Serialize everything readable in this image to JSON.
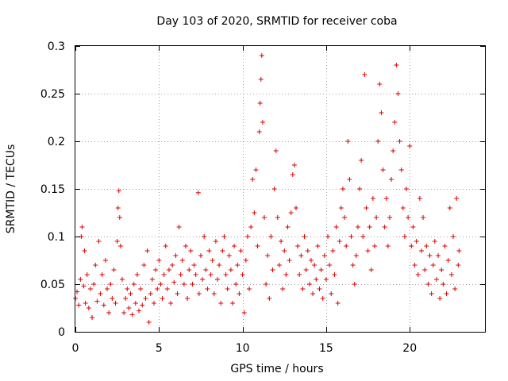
{
  "chart_data": {
    "type": "scatter",
    "title": "Day 103 of 2020, SRMTID for receiver coba",
    "xlabel": "GPS time / hours",
    "ylabel": "SRMTID / TECUs",
    "xlim": [
      0,
      24.5
    ],
    "ylim": [
      0,
      0.3
    ],
    "xticks": [
      0,
      5,
      10,
      15,
      20
    ],
    "xtick_labels": [
      "0",
      "5",
      "10",
      "15",
      "20"
    ],
    "yticks": [
      0,
      0.05,
      0.1,
      0.15,
      0.2,
      0.25,
      0.3
    ],
    "ytick_labels": [
      "0",
      "0.05",
      "0.1",
      "0.15",
      "0.2",
      "0.25",
      "0.3"
    ],
    "grid": true,
    "marker": "+",
    "color": "#e00000",
    "series": [
      {
        "name": "SRMTID",
        "points": [
          [
            0.0,
            0.035
          ],
          [
            0.1,
            0.042
          ],
          [
            0.2,
            0.028
          ],
          [
            0.3,
            0.055
          ],
          [
            0.35,
            0.1
          ],
          [
            0.4,
            0.11
          ],
          [
            0.5,
            0.048
          ],
          [
            0.55,
            0.085
          ],
          [
            0.6,
            0.03
          ],
          [
            0.7,
            0.06
          ],
          [
            0.8,
            0.025
          ],
          [
            0.9,
            0.045
          ],
          [
            1.0,
            0.015
          ],
          [
            1.1,
            0.05
          ],
          [
            1.2,
            0.07
          ],
          [
            1.3,
            0.032
          ],
          [
            1.4,
            0.095
          ],
          [
            1.5,
            0.04
          ],
          [
            1.6,
            0.06
          ],
          [
            1.7,
            0.028
          ],
          [
            1.8,
            0.075
          ],
          [
            1.9,
            0.045
          ],
          [
            2.0,
            0.02
          ],
          [
            2.1,
            0.05
          ],
          [
            2.2,
            0.035
          ],
          [
            2.3,
            0.065
          ],
          [
            2.4,
            0.03
          ],
          [
            2.5,
            0.095
          ],
          [
            2.55,
            0.13
          ],
          [
            2.6,
            0.148
          ],
          [
            2.65,
            0.12
          ],
          [
            2.7,
            0.09
          ],
          [
            2.8,
            0.055
          ],
          [
            2.9,
            0.02
          ],
          [
            3.0,
            0.035
          ],
          [
            3.1,
            0.045
          ],
          [
            3.2,
            0.025
          ],
          [
            3.3,
            0.04
          ],
          [
            3.4,
            0.018
          ],
          [
            3.5,
            0.05
          ],
          [
            3.6,
            0.03
          ],
          [
            3.7,
            0.06
          ],
          [
            3.8,
            0.022
          ],
          [
            3.9,
            0.045
          ],
          [
            4.0,
            0.028
          ],
          [
            4.1,
            0.07
          ],
          [
            4.2,
            0.035
          ],
          [
            4.3,
            0.085
          ],
          [
            4.4,
            0.01
          ],
          [
            4.5,
            0.04
          ],
          [
            4.6,
            0.055
          ],
          [
            4.7,
            0.03
          ],
          [
            4.8,
            0.065
          ],
          [
            4.9,
            0.045
          ],
          [
            5.0,
            0.075
          ],
          [
            5.1,
            0.05
          ],
          [
            5.2,
            0.035
          ],
          [
            5.3,
            0.06
          ],
          [
            5.4,
            0.09
          ],
          [
            5.5,
            0.045
          ],
          [
            5.6,
            0.065
          ],
          [
            5.7,
            0.03
          ],
          [
            5.8,
            0.07
          ],
          [
            5.9,
            0.052
          ],
          [
            6.0,
            0.08
          ],
          [
            6.1,
            0.04
          ],
          [
            6.2,
            0.11
          ],
          [
            6.3,
            0.06
          ],
          [
            6.4,
            0.075
          ],
          [
            6.5,
            0.05
          ],
          [
            6.6,
            0.09
          ],
          [
            6.7,
            0.035
          ],
          [
            6.8,
            0.065
          ],
          [
            6.9,
            0.085
          ],
          [
            7.0,
            0.05
          ],
          [
            7.1,
            0.07
          ],
          [
            7.2,
            0.06
          ],
          [
            7.35,
            0.146
          ],
          [
            7.4,
            0.04
          ],
          [
            7.5,
            0.08
          ],
          [
            7.6,
            0.055
          ],
          [
            7.7,
            0.1
          ],
          [
            7.8,
            0.065
          ],
          [
            7.9,
            0.045
          ],
          [
            8.0,
            0.085
          ],
          [
            8.1,
            0.06
          ],
          [
            8.2,
            0.075
          ],
          [
            8.3,
            0.04
          ],
          [
            8.4,
            0.095
          ],
          [
            8.5,
            0.055
          ],
          [
            8.6,
            0.07
          ],
          [
            8.7,
            0.03
          ],
          [
            8.8,
            0.085
          ],
          [
            8.9,
            0.1
          ],
          [
            9.0,
            0.06
          ],
          [
            9.1,
            0.045
          ],
          [
            9.2,
            0.08
          ],
          [
            9.3,
            0.065
          ],
          [
            9.4,
            0.03
          ],
          [
            9.5,
            0.09
          ],
          [
            9.6,
            0.05
          ],
          [
            9.7,
            0.07
          ],
          [
            9.8,
            0.04
          ],
          [
            9.9,
            0.085
          ],
          [
            10.0,
            0.06
          ],
          [
            10.1,
            0.02
          ],
          [
            10.2,
            0.075
          ],
          [
            10.3,
            0.1
          ],
          [
            10.4,
            0.045
          ],
          [
            10.5,
            0.11
          ],
          [
            10.6,
            0.16
          ],
          [
            10.7,
            0.125
          ],
          [
            10.8,
            0.17
          ],
          [
            10.9,
            0.09
          ],
          [
            11.0,
            0.21
          ],
          [
            11.05,
            0.24
          ],
          [
            11.1,
            0.265
          ],
          [
            11.15,
            0.29
          ],
          [
            11.2,
            0.22
          ],
          [
            11.3,
            0.12
          ],
          [
            11.4,
            0.05
          ],
          [
            11.5,
            0.08
          ],
          [
            11.6,
            0.035
          ],
          [
            11.7,
            0.1
          ],
          [
            11.8,
            0.065
          ],
          [
            11.9,
            0.15
          ],
          [
            12.0,
            0.19
          ],
          [
            12.1,
            0.12
          ],
          [
            12.2,
            0.07
          ],
          [
            12.3,
            0.095
          ],
          [
            12.4,
            0.045
          ],
          [
            12.5,
            0.085
          ],
          [
            12.6,
            0.06
          ],
          [
            12.7,
            0.11
          ],
          [
            12.8,
            0.075
          ],
          [
            12.9,
            0.125
          ],
          [
            13.0,
            0.165
          ],
          [
            13.1,
            0.175
          ],
          [
            13.2,
            0.13
          ],
          [
            13.3,
            0.09
          ],
          [
            13.4,
            0.06
          ],
          [
            13.5,
            0.08
          ],
          [
            13.6,
            0.045
          ],
          [
            13.7,
            0.1
          ],
          [
            13.8,
            0.065
          ],
          [
            13.9,
            0.085
          ],
          [
            14.0,
            0.05
          ],
          [
            14.1,
            0.075
          ],
          [
            14.2,
            0.04
          ],
          [
            14.3,
            0.07
          ],
          [
            14.4,
            0.055
          ],
          [
            14.5,
            0.09
          ],
          [
            14.6,
            0.045
          ],
          [
            14.7,
            0.065
          ],
          [
            14.8,
            0.035
          ],
          [
            14.9,
            0.08
          ],
          [
            15.0,
            0.055
          ],
          [
            15.1,
            0.1
          ],
          [
            15.2,
            0.07
          ],
          [
            15.3,
            0.04
          ],
          [
            15.4,
            0.085
          ],
          [
            15.5,
            0.06
          ],
          [
            15.6,
            0.11
          ],
          [
            15.7,
            0.03
          ],
          [
            15.8,
            0.095
          ],
          [
            15.9,
            0.13
          ],
          [
            16.0,
            0.15
          ],
          [
            16.1,
            0.12
          ],
          [
            16.2,
            0.09
          ],
          [
            16.3,
            0.2
          ],
          [
            16.4,
            0.16
          ],
          [
            16.5,
            0.1
          ],
          [
            16.6,
            0.07
          ],
          [
            16.7,
            0.05
          ],
          [
            16.8,
            0.08
          ],
          [
            16.9,
            0.11
          ],
          [
            17.0,
            0.15
          ],
          [
            17.1,
            0.18
          ],
          [
            17.2,
            0.1
          ],
          [
            17.3,
            0.27
          ],
          [
            17.4,
            0.13
          ],
          [
            17.5,
            0.085
          ],
          [
            17.6,
            0.11
          ],
          [
            17.7,
            0.065
          ],
          [
            17.8,
            0.14
          ],
          [
            17.9,
            0.09
          ],
          [
            18.0,
            0.12
          ],
          [
            18.1,
            0.2
          ],
          [
            18.2,
            0.26
          ],
          [
            18.3,
            0.23
          ],
          [
            18.4,
            0.17
          ],
          [
            18.5,
            0.11
          ],
          [
            18.6,
            0.14
          ],
          [
            18.7,
            0.09
          ],
          [
            18.8,
            0.12
          ],
          [
            18.9,
            0.16
          ],
          [
            19.0,
            0.19
          ],
          [
            19.1,
            0.22
          ],
          [
            19.2,
            0.28
          ],
          [
            19.3,
            0.25
          ],
          [
            19.4,
            0.2
          ],
          [
            19.5,
            0.17
          ],
          [
            19.6,
            0.13
          ],
          [
            19.7,
            0.1
          ],
          [
            19.8,
            0.15
          ],
          [
            19.9,
            0.12
          ],
          [
            20.0,
            0.195
          ],
          [
            20.1,
            0.09
          ],
          [
            20.2,
            0.11
          ],
          [
            20.3,
            0.07
          ],
          [
            20.4,
            0.095
          ],
          [
            20.5,
            0.06
          ],
          [
            20.6,
            0.14
          ],
          [
            20.7,
            0.085
          ],
          [
            20.8,
            0.12
          ],
          [
            20.9,
            0.065
          ],
          [
            21.0,
            0.09
          ],
          [
            21.1,
            0.05
          ],
          [
            21.2,
            0.08
          ],
          [
            21.3,
            0.04
          ],
          [
            21.4,
            0.07
          ],
          [
            21.5,
            0.095
          ],
          [
            21.6,
            0.055
          ],
          [
            21.7,
            0.08
          ],
          [
            21.8,
            0.035
          ],
          [
            21.9,
            0.065
          ],
          [
            22.0,
            0.05
          ],
          [
            22.1,
            0.09
          ],
          [
            22.2,
            0.04
          ],
          [
            22.3,
            0.075
          ],
          [
            22.4,
            0.13
          ],
          [
            22.5,
            0.06
          ],
          [
            22.6,
            0.1
          ],
          [
            22.7,
            0.045
          ],
          [
            22.8,
            0.14
          ],
          [
            22.9,
            0.07
          ],
          [
            22.95,
            0.085
          ]
        ]
      }
    ]
  }
}
